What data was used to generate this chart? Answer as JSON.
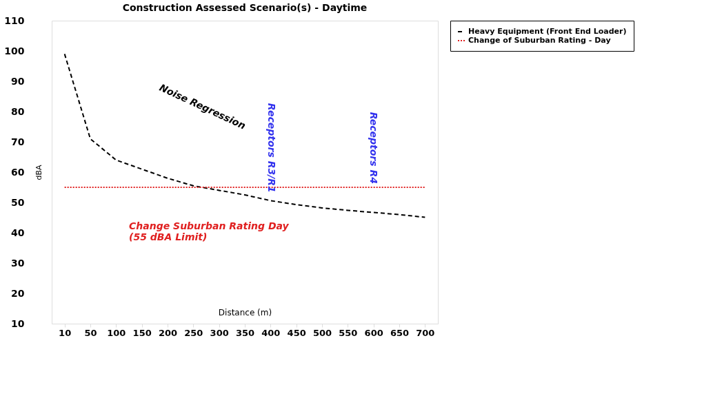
{
  "chart_data": {
    "type": "line",
    "title": "Construction Assessed Scenario(s) - Daytime",
    "xlabel": "Distance (m)",
    "ylabel": "dBA",
    "categories": [
      "10",
      "50",
      "100",
      "150",
      "200",
      "250",
      "300",
      "350",
      "400",
      "450",
      "500",
      "550",
      "600",
      "650",
      "700"
    ],
    "series": [
      {
        "name": "Heavy Equipment (Front End Loader)",
        "color": "#000000",
        "line_style": "dashed",
        "values": [
          99,
          71,
          64,
          61,
          58,
          55.5,
          54,
          52.5,
          50.6,
          49.3,
          48.2,
          47.4,
          46.7,
          46,
          45.1
        ]
      },
      {
        "name": "Change of Suburban Rating - Day",
        "color": "#e02020",
        "line_style": "dotted",
        "values": [
          55,
          55,
          55,
          55,
          55,
          55,
          55,
          55,
          55,
          55,
          55,
          55,
          55,
          55,
          55
        ]
      }
    ],
    "ylim": [
      10,
      110
    ],
    "yticks": [
      10,
      20,
      30,
      40,
      50,
      60,
      70,
      80,
      90,
      100,
      110
    ],
    "grid": false,
    "legend": "right",
    "annotations": [
      "Noise Regression",
      "Change Suburban Rating Day\n (55 dBA Limit)",
      "Receptors R3/R1",
      "Receptors R4"
    ]
  }
}
